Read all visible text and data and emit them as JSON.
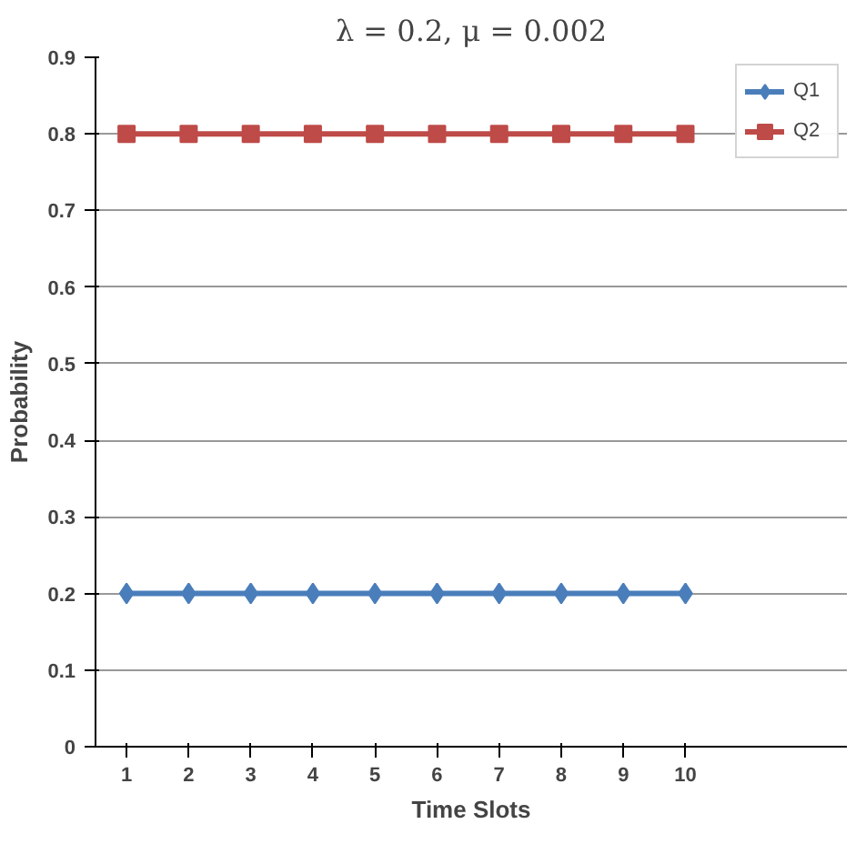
{
  "chart_data": {
    "type": "line",
    "title": "λ = 0.2, μ = 0.002",
    "xlabel": "Time Slots",
    "ylabel": "Probability",
    "categories": [
      "1",
      "2",
      "3",
      "4",
      "5",
      "6",
      "7",
      "8",
      "9",
      "10"
    ],
    "series": [
      {
        "name": "Q1",
        "color": "#4a7ebb",
        "marker": "diamond",
        "values": [
          0.2,
          0.2,
          0.2,
          0.2,
          0.2,
          0.2,
          0.2,
          0.2,
          0.2,
          0.2
        ]
      },
      {
        "name": "Q2",
        "color": "#be4b48",
        "marker": "square",
        "values": [
          0.8,
          0.8,
          0.8,
          0.8,
          0.8,
          0.8,
          0.8,
          0.8,
          0.8,
          0.8
        ]
      }
    ],
    "ylim": [
      0,
      0.9
    ],
    "yticks": [
      0,
      0.1,
      0.2,
      0.3,
      0.4,
      0.5,
      0.6,
      0.7,
      0.8,
      0.9
    ],
    "grid": "y",
    "legend": "top right",
    "line_style": "solid"
  }
}
